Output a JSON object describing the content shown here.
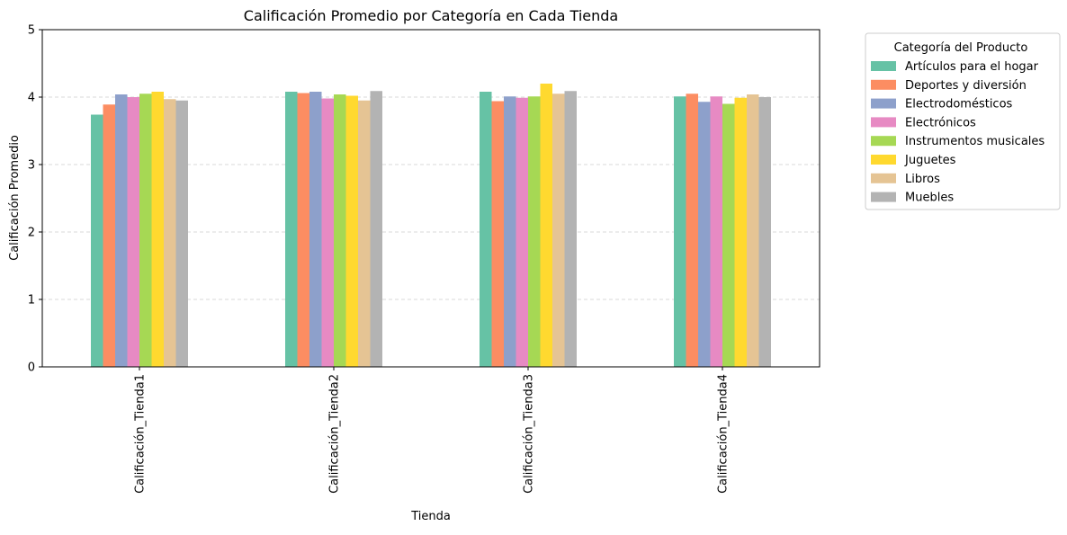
{
  "chart_data": {
    "type": "bar",
    "title": "Calificación Promedio por Categoría en Cada Tienda",
    "xlabel": "Tienda",
    "ylabel": "Calificación Promedio",
    "ylim": [
      0,
      5
    ],
    "yticks": [
      0,
      1,
      2,
      3,
      4,
      5
    ],
    "grid": "y-dashed",
    "legend_title": "Categoría del Producto",
    "legend_position": "outside-top-right",
    "categories": [
      "Calificación_Tienda1",
      "Calificación_Tienda2",
      "Calificación_Tienda3",
      "Calificación_Tienda4"
    ],
    "series": [
      {
        "name": "Artículos para el hogar",
        "color": "#66c2a5",
        "values": [
          3.74,
          4.08,
          4.08,
          4.01
        ]
      },
      {
        "name": "Deportes y diversión",
        "color": "#fc8d62",
        "values": [
          3.89,
          4.06,
          3.94,
          4.05
        ]
      },
      {
        "name": "Electrodomésticos",
        "color": "#8da0cb",
        "values": [
          4.04,
          4.08,
          4.01,
          3.93
        ]
      },
      {
        "name": "Electrónicos",
        "color": "#e78ac3",
        "values": [
          4.0,
          3.98,
          3.99,
          4.01
        ]
      },
      {
        "name": "Instrumentos musicales",
        "color": "#a6d854",
        "values": [
          4.05,
          4.04,
          4.01,
          3.9
        ]
      },
      {
        "name": "Juguetes",
        "color": "#ffd92f",
        "values": [
          4.08,
          4.02,
          4.2,
          3.99
        ]
      },
      {
        "name": "Libros",
        "color": "#e5c494",
        "values": [
          3.97,
          3.95,
          4.05,
          4.04
        ]
      },
      {
        "name": "Muebles",
        "color": "#b3b3b3",
        "values": [
          3.95,
          4.09,
          4.09,
          4.0
        ]
      }
    ]
  }
}
